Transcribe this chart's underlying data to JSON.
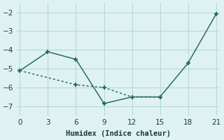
{
  "line1_x": [
    0,
    3,
    6,
    9,
    12,
    15,
    18,
    21
  ],
  "line1_y": [
    -5.1,
    -4.1,
    -4.5,
    -6.85,
    -6.5,
    -6.5,
    -4.7,
    -2.1
  ],
  "line2_x": [
    0,
    6,
    9,
    12,
    15
  ],
  "line2_y": [
    -5.1,
    -5.85,
    -6.0,
    -6.5,
    -6.5
  ],
  "line_color": "#2a6b65",
  "bg_color": "#dff2f2",
  "grid_color": "#b5d8d5",
  "xlabel": "Humidex (Indice chaleur)",
  "xlim": [
    -0.3,
    21.3
  ],
  "ylim": [
    -7.5,
    -1.5
  ],
  "xticks": [
    0,
    3,
    6,
    9,
    12,
    15,
    18,
    21
  ],
  "yticks": [
    -7,
    -6,
    -5,
    -4,
    -3,
    -2
  ],
  "marker": "+"
}
